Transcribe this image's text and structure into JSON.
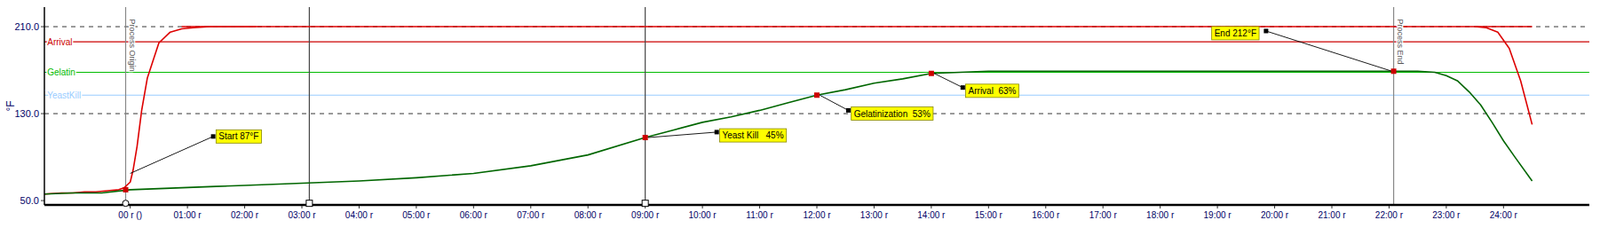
{
  "chart_data": {
    "type": "line",
    "ylabel": "°F",
    "xlim": [
      -1.5,
      25.5
    ],
    "ylim": [
      46,
      228
    ],
    "yticks": [
      {
        "value": 50.0,
        "label": "50.0"
      },
      {
        "value": 130.0,
        "label": "130.0"
      },
      {
        "value": 210.0,
        "label": "210.0"
      }
    ],
    "xticks": [
      {
        "value": 0,
        "label": "00 r ()"
      },
      {
        "value": 1,
        "label": "01:00 r"
      },
      {
        "value": 2,
        "label": "02:00 r"
      },
      {
        "value": 3,
        "label": "03:00 r"
      },
      {
        "value": 4,
        "label": "04:00 r"
      },
      {
        "value": 5,
        "label": "05:00 r"
      },
      {
        "value": 6,
        "label": "06:00 r"
      },
      {
        "value": 7,
        "label": "07:00 r"
      },
      {
        "value": 8,
        "label": "08:00 r"
      },
      {
        "value": 9,
        "label": "09:00 r"
      },
      {
        "value": 10,
        "label": "10:00 r"
      },
      {
        "value": 11,
        "label": "11:00 r"
      },
      {
        "value": 12,
        "label": "12:00 r"
      },
      {
        "value": 13,
        "label": "13:00 r"
      },
      {
        "value": 14,
        "label": "14:00 r"
      },
      {
        "value": 15,
        "label": "15:00 r"
      },
      {
        "value": 16,
        "label": "16:00 r"
      },
      {
        "value": 17,
        "label": "17:00 r"
      },
      {
        "value": 18,
        "label": "18:00 r"
      },
      {
        "value": 19,
        "label": "19:00 r"
      },
      {
        "value": 20,
        "label": "20:00 r"
      },
      {
        "value": 21,
        "label": "21:00 r"
      },
      {
        "value": 22,
        "label": "22:00 r"
      },
      {
        "value": 23,
        "label": "23:00 r"
      },
      {
        "value": 24,
        "label": "24:00 r"
      }
    ],
    "grid": false,
    "hlines": [
      {
        "value": 210.0,
        "color": "#000000",
        "line_style": "dashed"
      },
      {
        "value": 130.0,
        "color": "#000000",
        "line_style": "dashed"
      },
      {
        "value": 196.0,
        "color": "#cc0000",
        "line_style": "solid"
      },
      {
        "value": 168.0,
        "color": "#00bb00",
        "line_style": "solid"
      },
      {
        "value": 147.0,
        "color": "#99ccff",
        "line_style": "solid"
      }
    ],
    "vlines": [
      {
        "value": -0.08,
        "color": "#888888"
      },
      {
        "value": 3.13,
        "color": "#444444"
      },
      {
        "value": 9.0,
        "color": "#444444"
      },
      {
        "value": 22.08,
        "color": "#888888"
      }
    ],
    "series": [
      {
        "type": "line",
        "color": "#dd0000",
        "x": [
          -1.5,
          -1.2,
          -1.0,
          -0.8,
          -0.6,
          -0.4,
          -0.2,
          -0.1,
          0.0,
          0.05,
          0.12,
          0.2,
          0.3,
          0.5,
          0.7,
          0.9,
          1.1,
          1.4,
          1.8,
          2.2
        ],
        "values": [
          56,
          57,
          57,
          58,
          58,
          59,
          60,
          62,
          67,
          78,
          100,
          133,
          163,
          195,
          205,
          208,
          209,
          210,
          210,
          210
        ]
      },
      {
        "type": "line",
        "color": "#dd0000",
        "x": [
          0.9,
          24.5
        ],
        "values": [
          210,
          210
        ]
      },
      {
        "type": "line",
        "color": "#dd0000",
        "x": [
          23.5,
          23.7,
          23.9,
          24.1,
          24.3,
          24.5
        ],
        "values": [
          210,
          209,
          205,
          190,
          160,
          120
        ]
      },
      {
        "type": "line",
        "color": "#006600",
        "x": [
          -1.5,
          -1.0,
          -0.5,
          0.0,
          0.5,
          1.0,
          1.5,
          2.0,
          2.5,
          3.0,
          3.5,
          4.0,
          5.0,
          6.0,
          7.0,
          8.0,
          9.0,
          9.5,
          10.0,
          10.5,
          11.0,
          11.5,
          12.0,
          12.5,
          13.0,
          13.5,
          14.0,
          14.5,
          15.0,
          16.0,
          17.0,
          18.0,
          19.0,
          20.0,
          21.0,
          22.0,
          22.5,
          22.8,
          23.0,
          23.2,
          23.4,
          23.6,
          23.8,
          24.0,
          24.2,
          24.5
        ],
        "values": [
          56,
          57,
          57,
          60,
          61,
          62,
          63,
          64,
          65,
          66,
          67,
          68,
          71,
          75,
          82,
          92,
          108,
          115,
          122,
          127,
          133,
          140,
          147,
          152,
          158,
          162,
          167,
          168,
          169,
          169,
          169,
          169,
          169,
          169,
          169,
          169,
          169,
          168,
          165,
          160,
          150,
          138,
          122,
          105,
          90,
          68
        ]
      },
      {
        "type": "scatter",
        "marker": "square",
        "color": "#cc0000",
        "x": [
          -0.08,
          9.0,
          12.0,
          14.0,
          22.08
        ],
        "values": [
          60,
          108,
          147,
          167,
          169
        ]
      },
      {
        "type": "scatter",
        "marker": "circle",
        "color": "#ffffff",
        "x": [
          -0.08
        ],
        "values": [
          47.5
        ]
      },
      {
        "type": "scatter",
        "marker": "square",
        "color": "#ffffff",
        "x": [
          3.13,
          9.0
        ],
        "values": [
          47.5,
          47.5
        ]
      }
    ],
    "annotations": [
      {
        "text": "Start 87°F",
        "x": 1.5,
        "y": 109,
        "line_x": [
          0.0,
          1.45
        ],
        "line_y": [
          75,
          109
        ]
      },
      {
        "text": "Yeast Kill   45%",
        "x": 10.3,
        "y": 110,
        "line_x": [
          9.05,
          10.25
        ],
        "line_y": [
          108,
          113
        ]
      },
      {
        "text": "Gelatinization  53%",
        "x": 12.6,
        "y": 130,
        "line_x": [
          12.05,
          12.55
        ],
        "line_y": [
          147,
          133
        ]
      },
      {
        "text": "Arrival  63%",
        "x": 14.6,
        "y": 151,
        "line_x": [
          14.05,
          14.55
        ],
        "line_y": [
          167,
          154
        ]
      },
      {
        "text": "End 212°F",
        "x": 18.9,
        "y": 204,
        "line_x": [
          22.05,
          19.85
        ],
        "line_y": [
          169,
          206
        ]
      }
    ],
    "side_labels": [
      {
        "text": "Arrival",
        "x": -1.45,
        "y": 196.0,
        "color": "#cc0000"
      },
      {
        "text": "Gelatin",
        "x": -1.45,
        "y": 168.0,
        "color": "#00bb00"
      },
      {
        "text": "YeastKill",
        "x": -1.45,
        "y": 147.0,
        "color": "#99ccff"
      }
    ],
    "line_labels": [
      {
        "text": "Process Origin",
        "x": -0.08,
        "y": 217,
        "color": "#555555"
      },
      {
        "text": "Process End",
        "x": 22.08,
        "y": 217,
        "color": "#555555"
      }
    ]
  }
}
